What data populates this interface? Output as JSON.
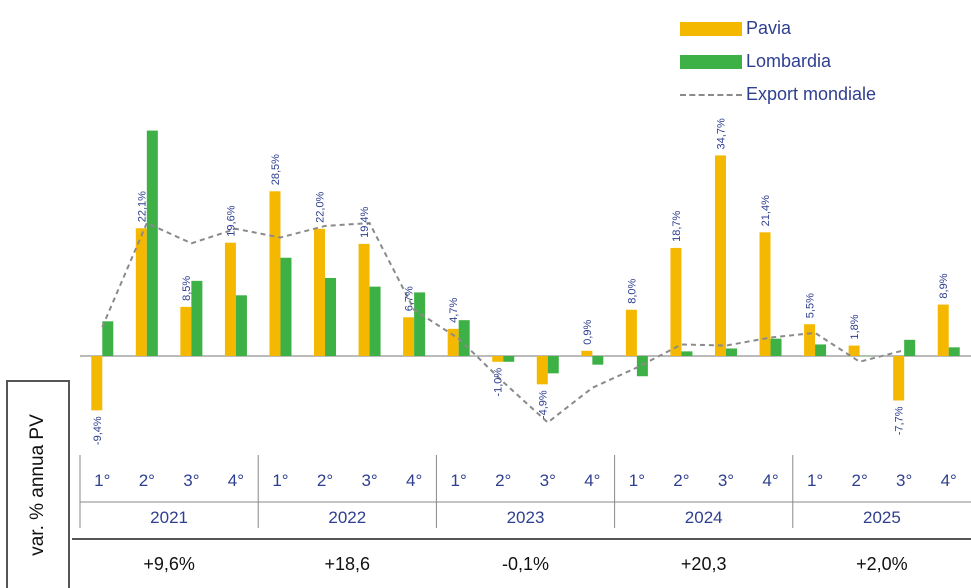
{
  "chart_data": {
    "type": "bar",
    "ylabel": "var. % annua PV",
    "quarter_labels": [
      "1°",
      "2°",
      "3°",
      "4°"
    ],
    "years": [
      "2021",
      "2022",
      "2023",
      "2024",
      "2025"
    ],
    "annual_values": [
      "+9,6%",
      "+18,6",
      "-0,1%",
      "+20,3",
      "+2,0%"
    ],
    "categories": [
      "1° 2021",
      "2° 2021",
      "3° 2021",
      "4° 2021",
      "1° 2022",
      "2° 2022",
      "3° 2022",
      "4° 2022",
      "1° 2023",
      "2° 2023",
      "3° 2023",
      "4° 2023",
      "1° 2024",
      "2° 2024",
      "3° 2024",
      "4° 2024",
      "1° 2025",
      "2° 2025",
      "3° 2025",
      "4° 2025"
    ],
    "series": [
      {
        "name": "Pavia",
        "kind": "bar",
        "color": "#f5b800",
        "values": [
          -9.4,
          22.1,
          8.5,
          19.6,
          28.5,
          22.0,
          19.4,
          6.7,
          4.7,
          -1.0,
          -4.9,
          0.9,
          8.0,
          18.7,
          34.7,
          21.4,
          5.5,
          1.8,
          -7.7,
          8.9
        ],
        "labels": [
          "-9,4%",
          "22,1%",
          "8,5%",
          "19,6%",
          "28,5%",
          "22,0%",
          "19,4%",
          "6,7%",
          "4,7%",
          "-1,0%",
          "-4,9%",
          "0,9%",
          "8,0%",
          "18,7%",
          "34,7%",
          "21,4%",
          "5,5%",
          "1,8%",
          "-7,7%",
          "8,9%"
        ]
      },
      {
        "name": "Lombardia",
        "kind": "bar",
        "color": "#3db046",
        "values": [
          6.0,
          39.0,
          13.0,
          10.5,
          17.0,
          13.5,
          12.0,
          11.0,
          6.2,
          -1.0,
          -3.0,
          -1.5,
          -3.5,
          0.8,
          1.3,
          3.0,
          2.0,
          0.0,
          2.8,
          1.5
        ]
      },
      {
        "name": "Export mondiale",
        "kind": "line",
        "color": "#8a8a8a",
        "dashed": true,
        "values": [
          5.0,
          23.0,
          19.5,
          22.0,
          20.5,
          22.5,
          23.0,
          8.0,
          3.0,
          -4.5,
          -11.5,
          -5.5,
          -2.0,
          2.0,
          1.8,
          3.2,
          4.0,
          -1.0,
          1.0,
          null
        ]
      }
    ],
    "ylim": [
      -13,
      42
    ],
    "grid": false,
    "legend_position": "top-right"
  }
}
